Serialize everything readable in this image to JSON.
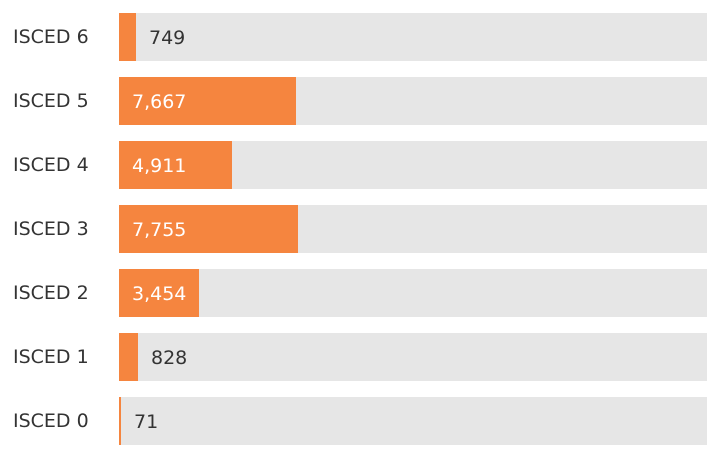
{
  "chart_data": {
    "type": "bar",
    "orientation": "horizontal",
    "categories": [
      "ISCED 6",
      "ISCED 5",
      "ISCED 4",
      "ISCED 3",
      "ISCED 2",
      "ISCED 1",
      "ISCED 0"
    ],
    "values": [
      749,
      7667,
      4911,
      7755,
      3454,
      828,
      71
    ],
    "value_labels": [
      "749",
      "7,667",
      "4,911",
      "7,755",
      "3,454",
      "828",
      "71"
    ],
    "xlim": [
      0,
      25500
    ],
    "grid": false,
    "legend": "none",
    "colors": {
      "bar": "#f5853f",
      "track": "#e6e6e6",
      "label": "#333333",
      "label_inside": "#ffffff"
    }
  }
}
